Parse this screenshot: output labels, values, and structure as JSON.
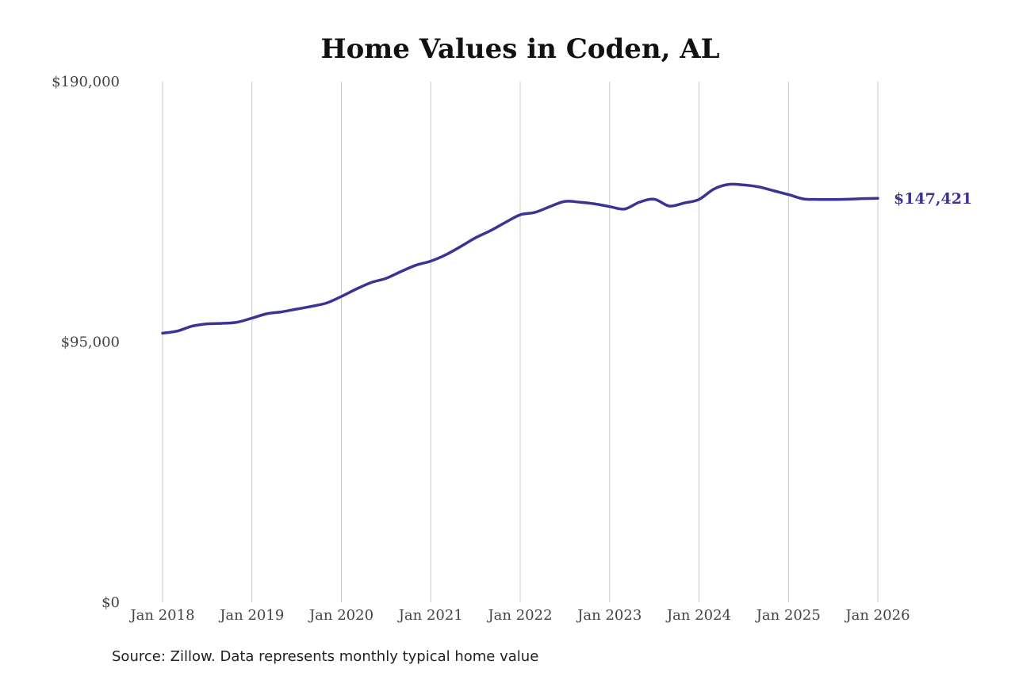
{
  "chart_data": {
    "type": "line",
    "title": "Home Values in Coden, AL",
    "source": "Source: Zillow. Data represents monthly typical home value",
    "ylim": [
      0,
      190000
    ],
    "y_ticks": [
      {
        "value": 190000,
        "label": "$190,000"
      },
      {
        "value": 95000,
        "label": "$95,000"
      },
      {
        "value": 0,
        "label": "$0"
      }
    ],
    "x_ticks": [
      {
        "value": "2018-01",
        "label": "Jan 2018"
      },
      {
        "value": "2019-01",
        "label": "Jan 2019"
      },
      {
        "value": "2020-01",
        "label": "Jan 2020"
      },
      {
        "value": "2021-01",
        "label": "Jan 2021"
      },
      {
        "value": "2022-01",
        "label": "Jan 2022"
      },
      {
        "value": "2023-01",
        "label": "Jan 2023"
      },
      {
        "value": "2024-01",
        "label": "Jan 2024"
      },
      {
        "value": "2025-01",
        "label": "Jan 2025"
      },
      {
        "value": "2026-01",
        "label": "Jan 2026"
      }
    ],
    "grid": "vertical",
    "line_color": "#3b3494",
    "end_label": "$147,421",
    "series": [
      {
        "x": [
          "2018-01",
          "2018-03",
          "2018-05",
          "2018-07",
          "2018-09",
          "2018-11",
          "2019-01",
          "2019-03",
          "2019-05",
          "2019-07",
          "2019-09",
          "2019-11",
          "2020-01",
          "2020-03",
          "2020-05",
          "2020-07",
          "2020-09",
          "2020-11",
          "2021-01",
          "2021-03",
          "2021-05",
          "2021-07",
          "2021-09",
          "2021-11",
          "2022-01",
          "2022-03",
          "2022-05",
          "2022-07",
          "2022-09",
          "2022-11",
          "2023-01",
          "2023-03",
          "2023-05",
          "2023-07",
          "2023-09",
          "2023-11",
          "2024-01",
          "2024-03",
          "2024-05",
          "2024-07",
          "2024-09",
          "2024-11",
          "2025-01",
          "2025-03",
          "2025-05",
          "2025-07",
          "2025-09",
          "2025-11",
          "2026-01"
        ],
        "values": [
          98200,
          99000,
          100800,
          101600,
          101800,
          102200,
          103700,
          105300,
          106000,
          107000,
          108000,
          109200,
          111600,
          114300,
          116700,
          118200,
          120700,
          123000,
          124500,
          126800,
          129800,
          133000,
          135600,
          138600,
          141400,
          142300,
          144400,
          146300,
          146000,
          145400,
          144400,
          143500,
          146000,
          147100,
          144600,
          145700,
          147000,
          150800,
          152500,
          152300,
          151600,
          150200,
          148800,
          147200,
          147000,
          147000,
          147100,
          147300,
          147421
        ]
      }
    ]
  }
}
